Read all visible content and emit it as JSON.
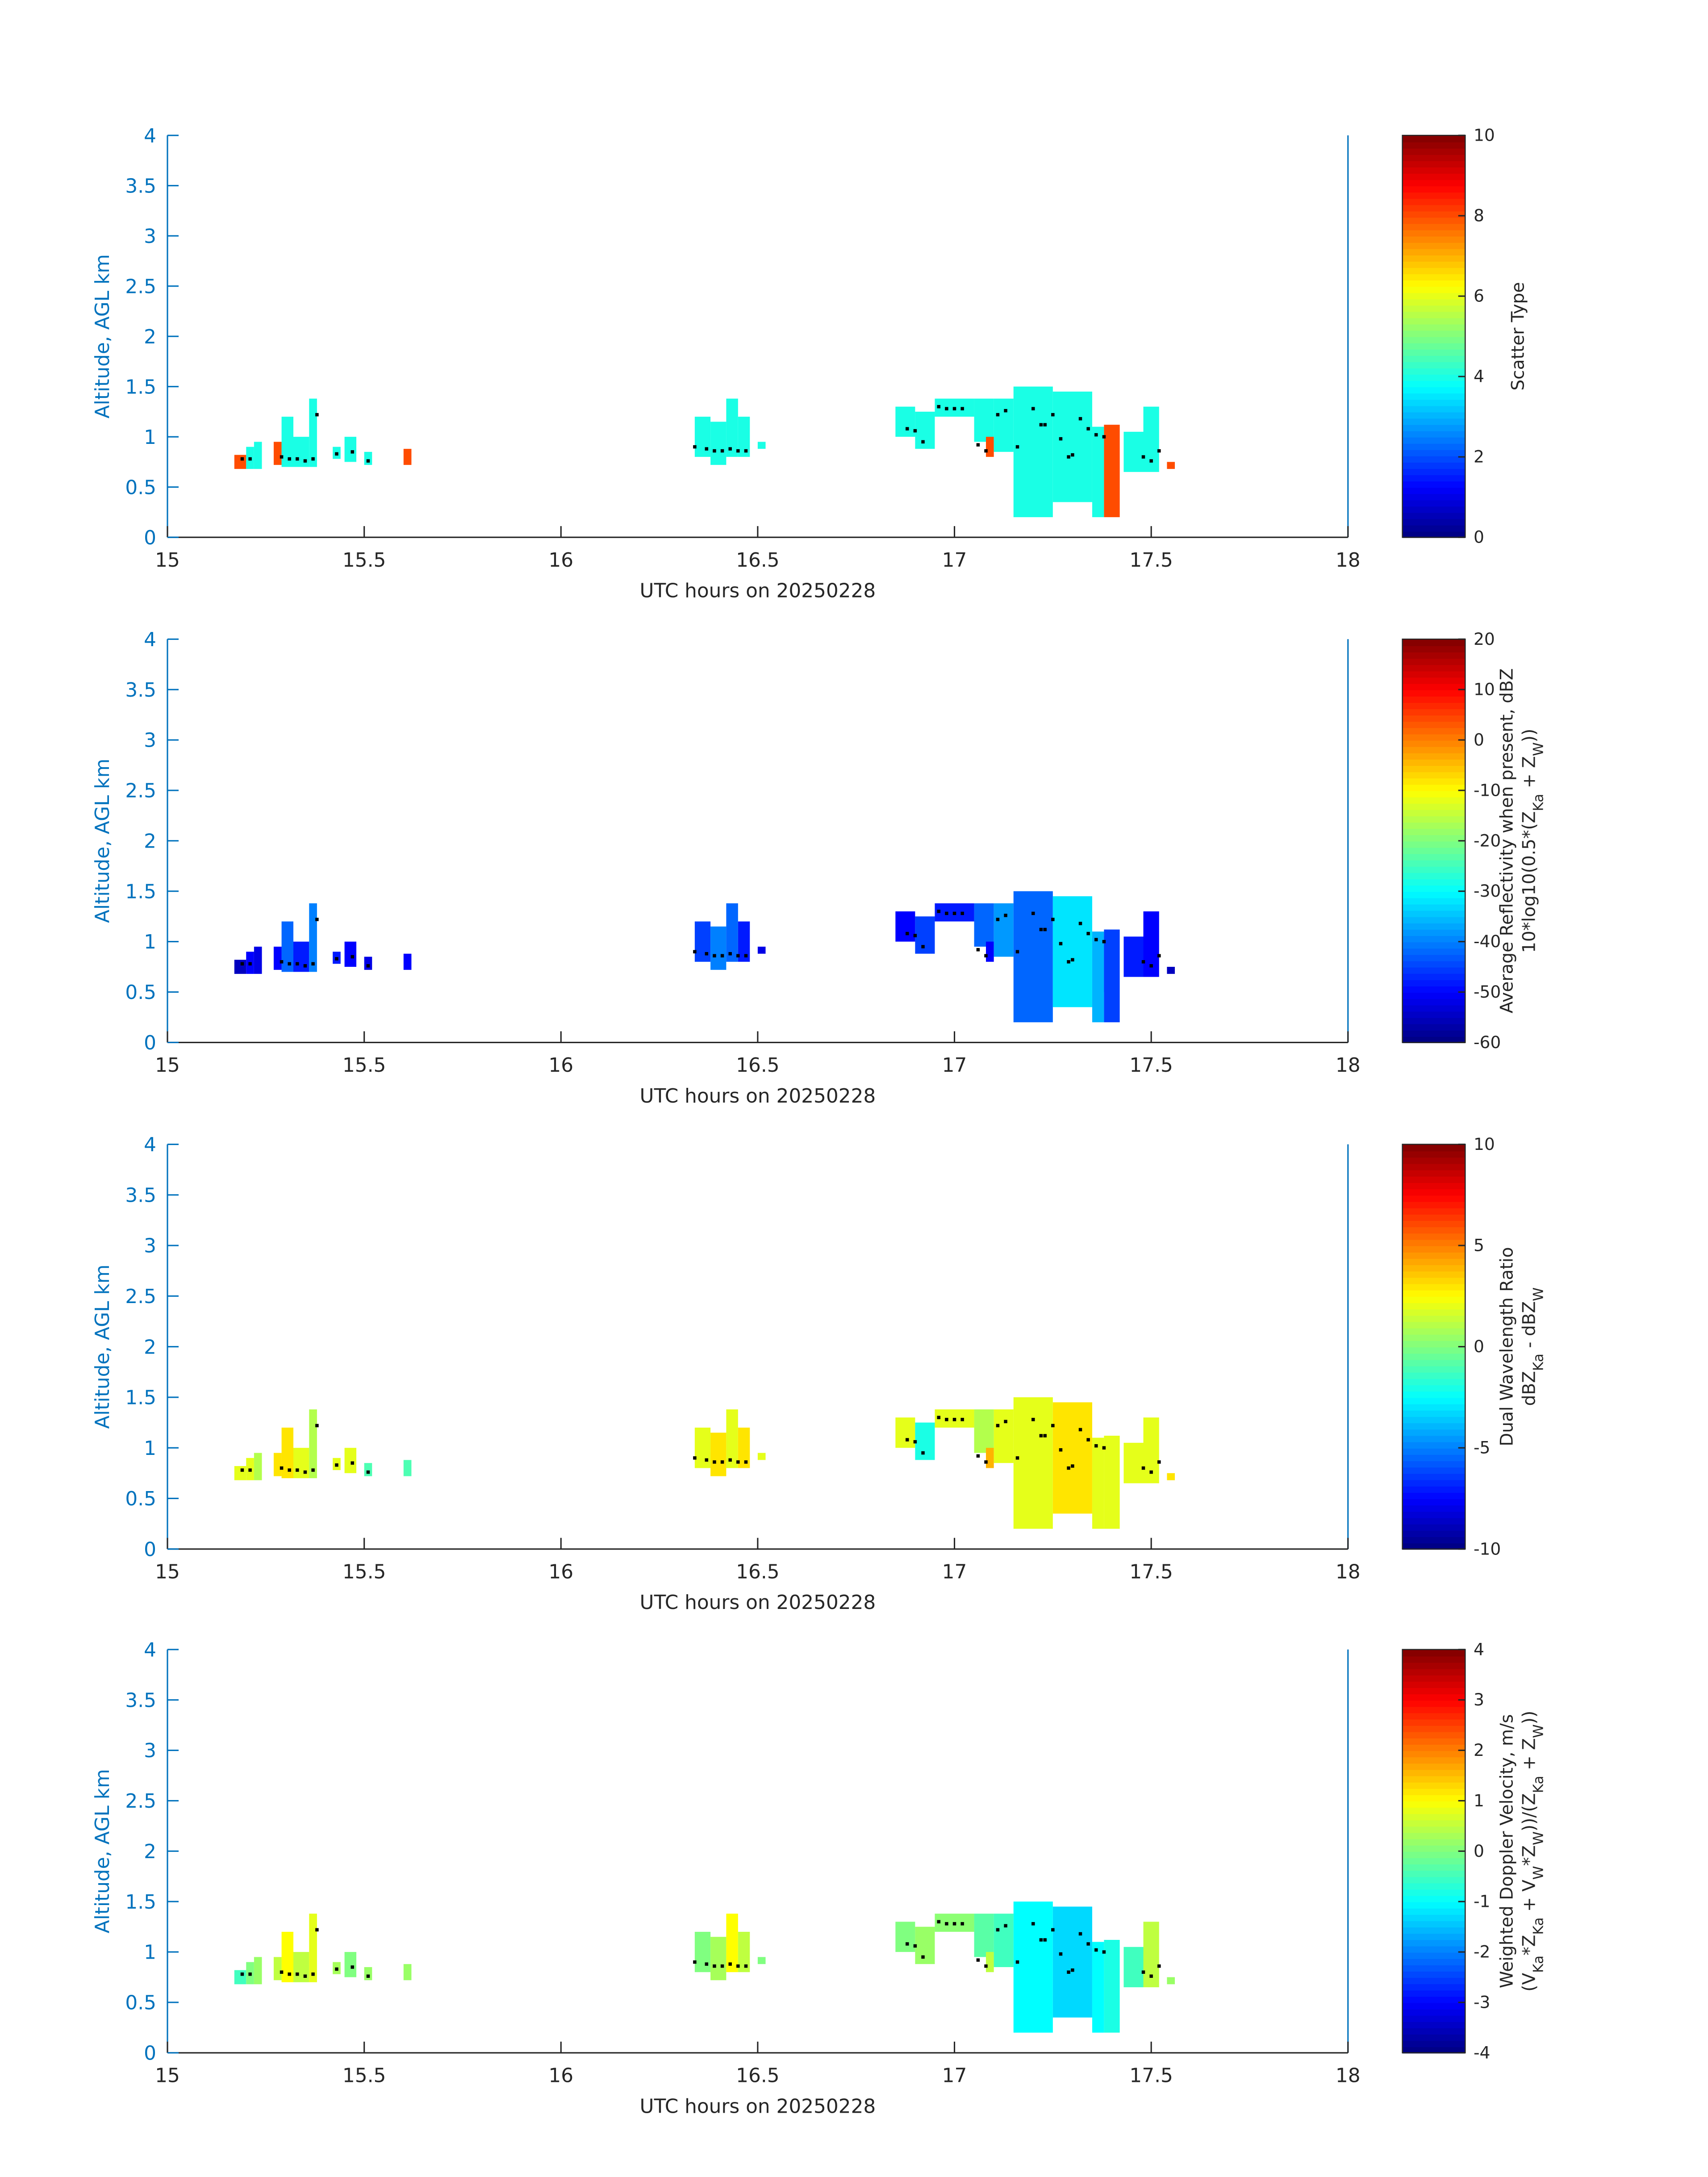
{
  "chart_data": [
    {
      "type": "heatmap",
      "xlabel": "UTC hours on 20250228",
      "ylabel": "Altitude, AGL km",
      "xlim": [
        15,
        18
      ],
      "ylim": [
        0,
        4
      ],
      "xticks": [
        "15",
        "15.5",
        "16",
        "16.5",
        "17",
        "17.5",
        "18"
      ],
      "yticks": [
        "0",
        "0.5",
        "1",
        "1.5",
        "2",
        "2.5",
        "3",
        "3.5",
        "4"
      ],
      "colorbar": {
        "label": [
          "Scatter Type"
        ],
        "clim": [
          0,
          10
        ],
        "ticks": [
          "0",
          "2",
          "4",
          "6",
          "8",
          "10"
        ],
        "colormap": "jet"
      },
      "values": [
        8,
        4,
        4,
        8,
        4,
        4,
        4,
        4,
        4,
        4,
        8,
        4,
        4,
        4,
        4,
        4,
        4,
        4,
        4,
        4,
        8,
        4,
        4,
        4,
        4,
        4,
        8,
        4,
        4,
        8
      ]
    },
    {
      "type": "heatmap",
      "xlabel": "UTC hours on 20250228",
      "ylabel": "Altitude, AGL km",
      "xlim": [
        15,
        18
      ],
      "ylim": [
        0,
        4
      ],
      "xticks": [
        "15",
        "15.5",
        "16",
        "16.5",
        "17",
        "17.5",
        "18"
      ],
      "yticks": [
        "0",
        "0.5",
        "1",
        "1.5",
        "2",
        "2.5",
        "3",
        "3.5",
        "4"
      ],
      "colorbar": {
        "label": [
          "Average Reflectivity when present, dBZ",
          "10*log10(0.5*(Z_{Ka} + Z_{W}))"
        ],
        "clim": [
          -60,
          20
        ],
        "ticks": [
          "-60",
          "-50",
          "-40",
          "-30",
          "-20",
          "-10",
          "0",
          "10",
          "20"
        ],
        "colormap": "jet"
      },
      "values": [
        -55,
        -50,
        -52,
        -50,
        -42,
        -48,
        -40,
        -48,
        -50,
        -52,
        -50,
        -45,
        -40,
        -42,
        -48,
        -52,
        -50,
        -45,
        -48,
        -42,
        -50,
        -38,
        -42,
        -32,
        -36,
        -50,
        -45,
        -48,
        -50,
        -55
      ]
    },
    {
      "type": "heatmap",
      "xlabel": "UTC hours on 20250228",
      "ylabel": "Altitude, AGL km",
      "xlim": [
        15,
        18
      ],
      "ylim": [
        0,
        4
      ],
      "xticks": [
        "15",
        "15.5",
        "16",
        "16.5",
        "17",
        "17.5",
        "18"
      ],
      "yticks": [
        "0",
        "0.5",
        "1",
        "1.5",
        "2",
        "2.5",
        "3",
        "3.5",
        "4"
      ],
      "colorbar": {
        "label": [
          "Dual Wavelength Ratio",
          "dBZ_{Ka} - dBZ_{W}"
        ],
        "clim": [
          -10,
          10
        ],
        "ticks": [
          "-10",
          "-5",
          "0",
          "5",
          "10"
        ],
        "colormap": "jet"
      },
      "values": [
        2,
        2,
        1,
        3,
        3,
        2,
        1,
        2,
        2,
        -1,
        -1,
        2,
        3,
        2,
        3,
        2,
        2,
        -2,
        2,
        1,
        4,
        2,
        2,
        3,
        2,
        2,
        2,
        2,
        2,
        3
      ]
    },
    {
      "type": "heatmap",
      "xlabel": "UTC hours on 20250228",
      "ylabel": "Altitude, AGL km",
      "xlim": [
        15,
        18
      ],
      "ylim": [
        0,
        4
      ],
      "xticks": [
        "15",
        "15.5",
        "16",
        "16.5",
        "17",
        "17.5",
        "18"
      ],
      "yticks": [
        "0",
        "0.5",
        "1",
        "1.5",
        "2",
        "2.5",
        "3",
        "3.5",
        "4"
      ],
      "colorbar": {
        "label": [
          "Weighted Doppler Velocity, m/s",
          "(V_{Ka}*Z_{Ka} + V_{W}*Z_{W}))/(Z_{Ka} + Z_{W}))"
        ],
        "clim": [
          -4,
          4
        ],
        "ticks": [
          "-4",
          "-3",
          "-2",
          "-1",
          "0",
          "1",
          "2",
          "3",
          "4"
        ],
        "colormap": "jet"
      },
      "values": [
        -0.5,
        0,
        0.2,
        0.5,
        1,
        0.5,
        0.8,
        0.3,
        0,
        0.2,
        0.2,
        0,
        0.3,
        1,
        0.5,
        0,
        0,
        0.2,
        0.1,
        -0.3,
        0.5,
        -0.5,
        -1,
        -1.3,
        -1,
        -0.5,
        -0.8,
        -0.5,
        0.5,
        0.2
      ]
    }
  ],
  "cells": [
    [
      15.17,
      15.2,
      0.68,
      0.82
    ],
    [
      15.2,
      15.22,
      0.68,
      0.9
    ],
    [
      15.22,
      15.24,
      0.68,
      0.95
    ],
    [
      15.27,
      15.29,
      0.72,
      0.95
    ],
    [
      15.29,
      15.32,
      0.7,
      1.2
    ],
    [
      15.32,
      15.36,
      0.7,
      1.0
    ],
    [
      15.36,
      15.38,
      0.7,
      1.38
    ],
    [
      15.42,
      15.44,
      0.78,
      0.9
    ],
    [
      15.45,
      15.48,
      0.75,
      1.0
    ],
    [
      15.5,
      15.52,
      0.72,
      0.85
    ],
    [
      15.6,
      15.62,
      0.72,
      0.88
    ],
    [
      16.34,
      16.38,
      0.8,
      1.2
    ],
    [
      16.38,
      16.42,
      0.72,
      1.15
    ],
    [
      16.42,
      16.45,
      0.8,
      1.38
    ],
    [
      16.45,
      16.48,
      0.8,
      1.2
    ],
    [
      16.5,
      16.52,
      0.88,
      0.95
    ],
    [
      16.85,
      16.9,
      1.0,
      1.3
    ],
    [
      16.9,
      16.95,
      0.88,
      1.25
    ],
    [
      16.95,
      17.05,
      1.2,
      1.38
    ],
    [
      17.05,
      17.1,
      0.95,
      1.38
    ],
    [
      17.08,
      17.1,
      0.8,
      1.0
    ],
    [
      17.1,
      17.15,
      0.85,
      1.38
    ],
    [
      17.15,
      17.25,
      0.2,
      1.5
    ],
    [
      17.25,
      17.35,
      0.35,
      1.45
    ],
    [
      17.35,
      17.38,
      0.2,
      1.1
    ],
    [
      17.38,
      17.4,
      0.5,
      1.05
    ],
    [
      17.38,
      17.42,
      0.2,
      1.12
    ],
    [
      17.43,
      17.48,
      0.65,
      1.05
    ],
    [
      17.48,
      17.52,
      0.65,
      1.3
    ],
    [
      17.54,
      17.56,
      0.68,
      0.75
    ]
  ],
  "cloud_base_points": [
    [
      15.19,
      0.78
    ],
    [
      15.21,
      0.78
    ],
    [
      15.29,
      0.8
    ],
    [
      15.31,
      0.78
    ],
    [
      15.33,
      0.78
    ],
    [
      15.35,
      0.76
    ],
    [
      15.37,
      0.78
    ],
    [
      15.38,
      1.22
    ],
    [
      15.43,
      0.83
    ],
    [
      15.47,
      0.85
    ],
    [
      15.51,
      0.76
    ],
    [
      16.34,
      0.9
    ],
    [
      16.37,
      0.88
    ],
    [
      16.39,
      0.86
    ],
    [
      16.41,
      0.86
    ],
    [
      16.43,
      0.88
    ],
    [
      16.45,
      0.86
    ],
    [
      16.47,
      0.86
    ],
    [
      16.88,
      1.08
    ],
    [
      16.9,
      1.06
    ],
    [
      16.92,
      0.95
    ],
    [
      16.96,
      1.3
    ],
    [
      16.98,
      1.28
    ],
    [
      17.0,
      1.28
    ],
    [
      17.02,
      1.28
    ],
    [
      17.06,
      0.92
    ],
    [
      17.08,
      0.86
    ],
    [
      17.11,
      1.22
    ],
    [
      17.13,
      1.26
    ],
    [
      17.16,
      0.9
    ],
    [
      17.2,
      1.28
    ],
    [
      17.22,
      1.12
    ],
    [
      17.23,
      1.12
    ],
    [
      17.25,
      1.22
    ],
    [
      17.27,
      0.98
    ],
    [
      17.29,
      0.8
    ],
    [
      17.3,
      0.82
    ],
    [
      17.32,
      1.18
    ],
    [
      17.34,
      1.08
    ],
    [
      17.36,
      1.02
    ],
    [
      17.38,
      1.0
    ],
    [
      17.48,
      0.8
    ],
    [
      17.5,
      0.76
    ],
    [
      17.52,
      0.86
    ]
  ],
  "colors": {
    "axis": "#0072BD",
    "text": "#262626"
  }
}
